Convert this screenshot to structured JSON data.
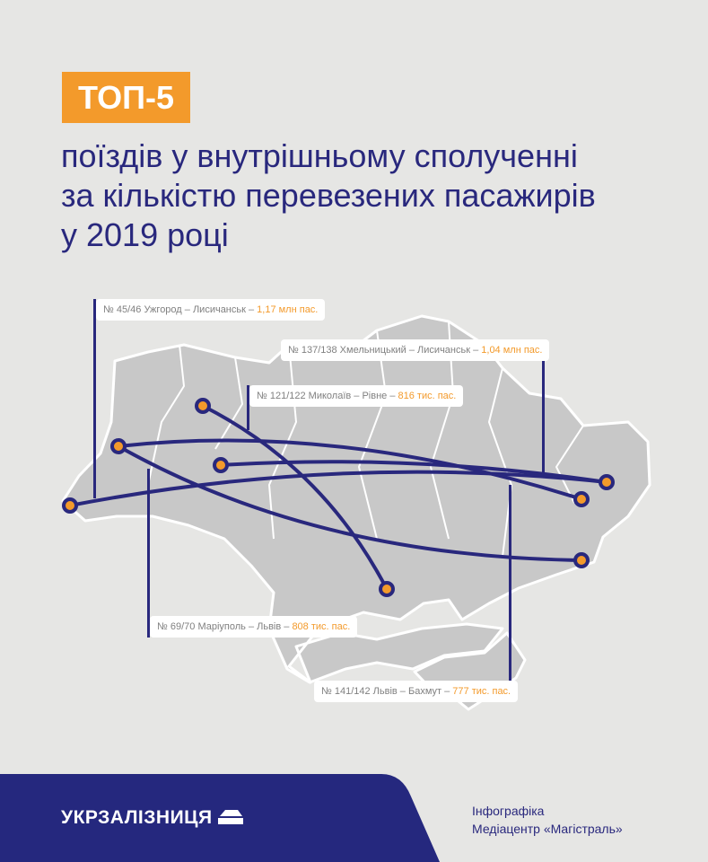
{
  "header": {
    "badge": "ТОП-5",
    "title_lines": [
      "поїздів у внутрішньому сполученні",
      "за кількістю перевезених пасажирів",
      "у 2019 році"
    ]
  },
  "routes": [
    {
      "label": "№ 45/46 Ужгород – Лисичанськ – ",
      "value": "1,17 млн пас."
    },
    {
      "label": "№ 137/138 Хмельницький – Лисичанськ – ",
      "value": "1,04 млн пас."
    },
    {
      "label": "№ 121/122 Миколаїв – Рівне – ",
      "value": "816 тис. пас."
    },
    {
      "label": "№ 69/70 Маріуполь – Львів – ",
      "value": "808 тис. пас."
    },
    {
      "label": "№ 141/142 Львів – Бахмут – ",
      "value": "777 тис. пас."
    }
  ],
  "footer": {
    "logo": "УКРЗАЛІЗНИЦЯ",
    "credit_line1": "Інфографіка",
    "credit_line2": "Медіацентр «Магістраль»"
  },
  "colors": {
    "accent": "#f39a2b",
    "brand": "#29287d",
    "map": "#c8c8c8",
    "background": "#e6e6e4"
  }
}
